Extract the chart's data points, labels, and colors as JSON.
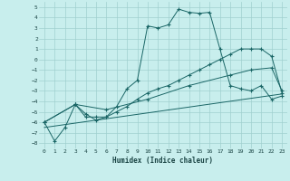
{
  "title": "",
  "xlabel": "Humidex (Indice chaleur)",
  "bg_color": "#c8eeed",
  "grid_color": "#a0d0cf",
  "line_color": "#1a6666",
  "xlim": [
    -0.5,
    23.5
  ],
  "ylim": [
    -8.5,
    5.5
  ],
  "xticks": [
    0,
    1,
    2,
    3,
    4,
    5,
    6,
    7,
    8,
    9,
    10,
    11,
    12,
    13,
    14,
    15,
    16,
    17,
    18,
    19,
    20,
    21,
    22,
    23
  ],
  "yticks": [
    -8,
    -7,
    -6,
    -5,
    -4,
    -3,
    -2,
    -1,
    0,
    1,
    2,
    3,
    4,
    5
  ],
  "line1_x": [
    0,
    1,
    2,
    3,
    4,
    5,
    6,
    7,
    8,
    9,
    10,
    11,
    12,
    13,
    14,
    15,
    16,
    17,
    18,
    19,
    20,
    21,
    22,
    23
  ],
  "line1_y": [
    -6.0,
    -7.8,
    -6.5,
    -4.3,
    -5.2,
    -5.8,
    -5.5,
    -4.5,
    -2.8,
    -2.0,
    3.2,
    3.0,
    3.3,
    4.8,
    4.5,
    4.4,
    4.5,
    1.0,
    -2.5,
    -2.8,
    -3.0,
    -2.5,
    -3.8,
    -3.5
  ],
  "line2_x": [
    0,
    3,
    4,
    5,
    6,
    7,
    8,
    9,
    10,
    11,
    12,
    13,
    14,
    15,
    16,
    17,
    18,
    19,
    20,
    21,
    22,
    23
  ],
  "line2_y": [
    -6.0,
    -4.3,
    -5.5,
    -5.5,
    -5.5,
    -5.0,
    -4.5,
    -3.8,
    -3.2,
    -2.8,
    -2.5,
    -2.0,
    -1.5,
    -1.0,
    -0.5,
    0.0,
    0.5,
    1.0,
    1.0,
    1.0,
    0.3,
    -3.2
  ],
  "line3_x": [
    0,
    3,
    6,
    10,
    14,
    18,
    20,
    22,
    23
  ],
  "line3_y": [
    -6.0,
    -4.3,
    -4.8,
    -3.8,
    -2.5,
    -1.5,
    -1.0,
    -0.8,
    -3.0
  ],
  "line4_x": [
    0,
    23
  ],
  "line4_y": [
    -6.5,
    -3.3
  ]
}
